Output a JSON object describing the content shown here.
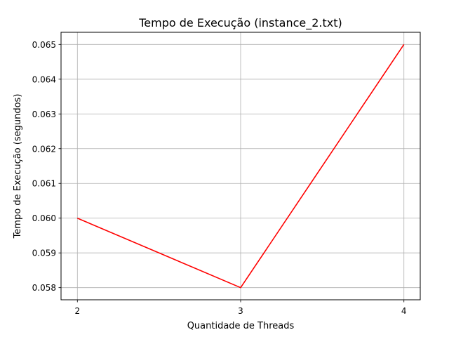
{
  "chart_data": {
    "type": "line",
    "title": "Tempo de Execução (instance_2.txt)",
    "xlabel": "Quantidade de Threads",
    "ylabel": "Tempo de Execução (segundos)",
    "x": [
      2,
      3,
      4
    ],
    "series": [
      {
        "values": [
          0.06,
          0.058,
          0.065
        ],
        "color": "#ff0000"
      }
    ],
    "xticks": [
      "2",
      "3",
      "4"
    ],
    "yticks": [
      "0.058",
      "0.059",
      "0.060",
      "0.061",
      "0.062",
      "0.063",
      "0.064",
      "0.065"
    ],
    "xlim": [
      1.9,
      4.1
    ],
    "ylim": [
      0.05765,
      0.06535
    ],
    "grid": true,
    "legend": "none"
  }
}
